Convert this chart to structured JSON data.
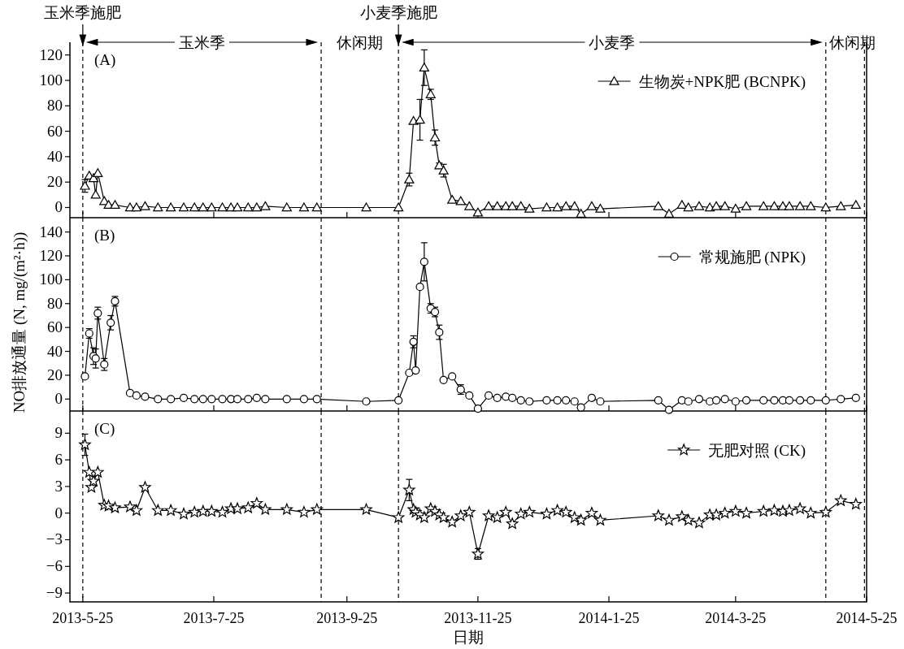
{
  "chart_data": [
    {
      "type": "line",
      "marker": "triangle",
      "legend": "top right",
      "tick_labels": "y",
      "annotations": [
        "(A)",
        "玉米季",
        "休闲期",
        "小麦季",
        "休闲期"
      ],
      "xlim": [
        "2013-05-19",
        "2014-05-25"
      ],
      "ylim": [
        -8,
        130
      ],
      "yticks": [
        0,
        20,
        40,
        60,
        80,
        100,
        120
      ],
      "xticks": [
        {
          "value": "2013-05-25",
          "label": null
        },
        {
          "value": "2013-07-25",
          "label": null
        },
        {
          "value": "2013-09-25",
          "label": null
        },
        {
          "value": "2013-11-25",
          "label": null
        },
        {
          "value": "2014-01-25",
          "label": null
        },
        {
          "value": "2014-03-25",
          "label": null
        },
        {
          "value": "2014-05-25",
          "label": null
        }
      ],
      "ref_lines": [
        {
          "axis": "x",
          "value": "2013-05-25",
          "label": "玉米季施肥",
          "line_style": "dashed"
        },
        {
          "axis": "x",
          "value": "2013-09-13",
          "line_style": "dashed"
        },
        {
          "axis": "x",
          "value": "2013-10-19",
          "label": "小麦季施肥",
          "line_style": "dashed"
        },
        {
          "axis": "x",
          "value": "2014-05-06",
          "line_style": "dashed"
        },
        {
          "axis": "x",
          "value": "2014-05-24",
          "line_style": "dashed"
        }
      ],
      "x": [
        "2013-05-26",
        "2013-05-28",
        "2013-05-30",
        "2013-05-31",
        "2013-06-01",
        "2013-06-04",
        "2013-06-06",
        "2013-06-09",
        "2013-06-16",
        "2013-06-19",
        "2013-06-23",
        "2013-06-29",
        "2013-07-05",
        "2013-07-11",
        "2013-07-16",
        "2013-07-20",
        "2013-07-24",
        "2013-07-29",
        "2013-08-02",
        "2013-08-05",
        "2013-08-10",
        "2013-08-14",
        "2013-08-18",
        "2013-08-28",
        "2013-09-05",
        "2013-09-11",
        "2013-10-04",
        "2013-10-19",
        "2013-10-24",
        "2013-10-26",
        "2013-10-29",
        "2013-10-31",
        "2013-11-03",
        "2013-11-05",
        "2013-11-07",
        "2013-11-09",
        "2013-11-13",
        "2013-11-17",
        "2013-11-21",
        "2013-11-25",
        "2013-11-30",
        "2013-12-04",
        "2013-12-08",
        "2013-12-11",
        "2013-12-15",
        "2013-12-19",
        "2013-12-27",
        "2014-01-01",
        "2014-01-05",
        "2014-01-09",
        "2014-01-12",
        "2014-01-17",
        "2014-01-21",
        "2014-02-17",
        "2014-02-22",
        "2014-02-28",
        "2014-03-03",
        "2014-03-08",
        "2014-03-13",
        "2014-03-16",
        "2014-03-20",
        "2014-03-25",
        "2014-03-30",
        "2014-04-07",
        "2014-04-12",
        "2014-04-16",
        "2014-04-19",
        "2014-04-24",
        "2014-04-29",
        "2014-05-06",
        "2014-05-13",
        "2014-05-20"
      ],
      "series": [
        {
          "name": "生物炭+NPK肥 (BCNPK)",
          "color": "#000000",
          "values": [
            17,
            25,
            23,
            10,
            27,
            5,
            2,
            2,
            0,
            0,
            1,
            0,
            0,
            0,
            0,
            0,
            0,
            0,
            0,
            0,
            0,
            0,
            1,
            0,
            0,
            0,
            0,
            0,
            22,
            68,
            69,
            110,
            89,
            55,
            33,
            29,
            6,
            5,
            1,
            -4,
            1,
            1,
            1,
            1,
            1,
            -1,
            0,
            0,
            1,
            1,
            -5,
            1,
            -1,
            1,
            -5,
            2,
            0,
            1,
            0,
            1,
            1,
            -1,
            1,
            1,
            1,
            1,
            1,
            1,
            1,
            0,
            1,
            2
          ],
          "errors": [
            5,
            null,
            null,
            null,
            null,
            null,
            null,
            null,
            null,
            null,
            null,
            null,
            null,
            null,
            null,
            null,
            null,
            null,
            null,
            null,
            null,
            null,
            null,
            null,
            null,
            null,
            null,
            null,
            5,
            null,
            16,
            14,
            4,
            6,
            2,
            5,
            null,
            null,
            null,
            null,
            null,
            null,
            null,
            null,
            null,
            null,
            null,
            null,
            null,
            null,
            null,
            null,
            null,
            null,
            null,
            null,
            null,
            null,
            null,
            null,
            null,
            null,
            null,
            null,
            null,
            null,
            null,
            null,
            null,
            null,
            null,
            null
          ]
        }
      ]
    },
    {
      "type": "line",
      "marker": "circle",
      "legend": "top right",
      "tick_labels": "y",
      "ylabel": "NO排放通量 (N, mg/(m²·h))",
      "annotations": [
        "(B)"
      ],
      "xlim": [
        "2013-05-19",
        "2014-05-25"
      ],
      "ylim": [
        -10,
        152
      ],
      "yticks": [
        0,
        20,
        40,
        60,
        80,
        100,
        120,
        140
      ],
      "xticks": [
        {
          "value": "2013-05-25",
          "label": null
        },
        {
          "value": "2013-07-25",
          "label": null
        },
        {
          "value": "2013-09-25",
          "label": null
        },
        {
          "value": "2013-11-25",
          "label": null
        },
        {
          "value": "2014-01-25",
          "label": null
        },
        {
          "value": "2014-03-25",
          "label": null
        },
        {
          "value": "2014-05-25",
          "label": null
        }
      ],
      "ref_lines": [
        {
          "axis": "x",
          "value": "2013-05-25",
          "line_style": "dashed"
        },
        {
          "axis": "x",
          "value": "2013-09-13",
          "line_style": "dashed"
        },
        {
          "axis": "x",
          "value": "2013-10-19",
          "line_style": "dashed"
        },
        {
          "axis": "x",
          "value": "2014-05-06",
          "line_style": "dashed"
        },
        {
          "axis": "x",
          "value": "2014-05-24",
          "line_style": "dashed"
        }
      ],
      "x": [
        "2013-05-26",
        "2013-05-28",
        "2013-05-30",
        "2013-05-31",
        "2013-06-01",
        "2013-06-04",
        "2013-06-07",
        "2013-06-09",
        "2013-06-16",
        "2013-06-19",
        "2013-06-23",
        "2013-06-29",
        "2013-07-05",
        "2013-07-11",
        "2013-07-16",
        "2013-07-20",
        "2013-07-24",
        "2013-07-29",
        "2013-08-02",
        "2013-08-05",
        "2013-08-10",
        "2013-08-14",
        "2013-08-18",
        "2013-08-28",
        "2013-09-05",
        "2013-09-11",
        "2013-10-04",
        "2013-10-19",
        "2013-10-24",
        "2013-10-26",
        "2013-10-27",
        "2013-10-29",
        "2013-10-31",
        "2013-11-03",
        "2013-11-05",
        "2013-11-07",
        "2013-11-09",
        "2013-11-13",
        "2013-11-17",
        "2013-11-21",
        "2013-11-25",
        "2013-11-30",
        "2013-12-04",
        "2013-12-08",
        "2013-12-11",
        "2013-12-15",
        "2013-12-19",
        "2013-12-27",
        "2014-01-01",
        "2014-01-05",
        "2014-01-09",
        "2014-01-12",
        "2014-01-17",
        "2014-01-21",
        "2014-02-17",
        "2014-02-22",
        "2014-02-28",
        "2014-03-03",
        "2014-03-08",
        "2014-03-13",
        "2014-03-16",
        "2014-03-20",
        "2014-03-25",
        "2014-03-30",
        "2014-04-07",
        "2014-04-12",
        "2014-04-16",
        "2014-04-19",
        "2014-04-24",
        "2014-04-29",
        "2014-05-06",
        "2014-05-13",
        "2014-05-20"
      ],
      "series": [
        {
          "name": "常规施肥 (NPK)",
          "color": "#000000",
          "values": [
            19,
            55,
            36,
            34,
            72,
            29,
            64,
            82,
            5,
            3,
            2,
            0,
            0,
            1,
            0,
            0,
            0,
            0,
            0,
            0,
            0,
            1,
            0,
            0,
            0,
            0,
            -2,
            -1,
            22,
            48,
            24,
            94,
            115,
            76,
            73,
            56,
            16,
            19,
            8,
            3,
            -8,
            3,
            1,
            2,
            1,
            -1,
            -2,
            -1,
            -1,
            -1,
            -2,
            -7,
            1,
            -2,
            -1,
            -9,
            -1,
            -2,
            0,
            -2,
            -1,
            0,
            -2,
            -1,
            -1,
            -1,
            -1,
            -1,
            -1,
            -1,
            -1,
            0,
            1
          ],
          "errors": [
            null,
            4,
            7,
            8,
            5,
            5,
            6,
            4,
            null,
            null,
            null,
            null,
            null,
            null,
            null,
            null,
            null,
            null,
            null,
            null,
            null,
            null,
            null,
            null,
            null,
            null,
            null,
            null,
            null,
            5,
            null,
            null,
            16,
            4,
            4,
            6,
            null,
            null,
            4,
            null,
            null,
            null,
            null,
            null,
            null,
            null,
            null,
            null,
            null,
            null,
            null,
            null,
            null,
            null,
            null,
            null,
            null,
            null,
            null,
            null,
            null,
            null,
            null,
            null,
            null,
            null,
            null,
            null,
            null,
            null,
            null,
            null,
            null
          ]
        }
      ]
    },
    {
      "type": "line",
      "marker": "star",
      "legend": "top right",
      "xlabel": "日期",
      "annotations": [
        "(C)"
      ],
      "xlim": [
        "2013-05-19",
        "2014-05-25"
      ],
      "ylim": [
        -10,
        11.5
      ],
      "yticks": [
        -9,
        -6,
        -3,
        0,
        3,
        6,
        9
      ],
      "xticks": [
        {
          "value": "2013-05-25",
          "label": "2013-5-25"
        },
        {
          "value": "2013-07-25",
          "label": "2013-7-25"
        },
        {
          "value": "2013-09-25",
          "label": "2013-9-25"
        },
        {
          "value": "2013-11-25",
          "label": "2013-11-25"
        },
        {
          "value": "2014-01-25",
          "label": "2014-1-25"
        },
        {
          "value": "2014-03-25",
          "label": "2014-3-25"
        },
        {
          "value": "2014-05-25",
          "label": "2014-5-25"
        }
      ],
      "ref_lines": [
        {
          "axis": "x",
          "value": "2013-05-25",
          "line_style": "dashed"
        },
        {
          "axis": "x",
          "value": "2013-09-13",
          "line_style": "dashed"
        },
        {
          "axis": "x",
          "value": "2013-10-19",
          "line_style": "dashed"
        },
        {
          "axis": "x",
          "value": "2014-05-06",
          "line_style": "dashed"
        },
        {
          "axis": "x",
          "value": "2014-05-24",
          "line_style": "dashed"
        }
      ],
      "x": [
        "2013-05-26",
        "2013-05-28",
        "2013-05-29",
        "2013-05-30",
        "2013-06-01",
        "2013-06-04",
        "2013-06-06",
        "2013-06-09",
        "2013-06-16",
        "2013-06-19",
        "2013-06-23",
        "2013-06-29",
        "2013-07-05",
        "2013-07-11",
        "2013-07-16",
        "2013-07-20",
        "2013-07-24",
        "2013-07-29",
        "2013-08-02",
        "2013-08-05",
        "2013-08-10",
        "2013-08-14",
        "2013-08-18",
        "2013-08-28",
        "2013-09-05",
        "2013-09-11",
        "2013-10-04",
        "2013-10-19",
        "2013-10-24",
        "2013-10-26",
        "2013-10-27",
        "2013-10-29",
        "2013-10-31",
        "2013-11-03",
        "2013-11-05",
        "2013-11-07",
        "2013-11-09",
        "2013-11-13",
        "2013-11-17",
        "2013-11-21",
        "2013-11-25",
        "2013-11-30",
        "2013-12-04",
        "2013-12-08",
        "2013-12-11",
        "2013-12-15",
        "2013-12-19",
        "2013-12-27",
        "2014-01-01",
        "2014-01-05",
        "2014-01-09",
        "2014-01-12",
        "2014-01-17",
        "2014-01-21",
        "2014-02-17",
        "2014-02-22",
        "2014-02-28",
        "2014-03-03",
        "2014-03-08",
        "2014-03-13",
        "2014-03-16",
        "2014-03-20",
        "2014-03-25",
        "2014-03-30",
        "2014-04-07",
        "2014-04-12",
        "2014-04-16",
        "2014-04-19",
        "2014-04-24",
        "2014-04-29",
        "2014-05-06",
        "2014-05-13",
        "2014-05-20"
      ],
      "series": [
        {
          "name": "无肥对照 (CK)",
          "color": "#000000",
          "values": [
            7.7,
            4.6,
            2.9,
            3.6,
            4.6,
            0.9,
            0.8,
            0.6,
            0.7,
            0.3,
            2.9,
            0.3,
            0.3,
            -0.1,
            0.1,
            0.2,
            0.2,
            0.1,
            0.5,
            0.5,
            0.6,
            1.1,
            0.4,
            0.4,
            0.1,
            0.4,
            0.4,
            -0.5,
            2.6,
            0.4,
            0.1,
            -0.2,
            -0.5,
            0.5,
            0.2,
            -0.2,
            -0.5,
            -1.0,
            -0.3,
            0.1,
            -4.6,
            -0.3,
            -0.5,
            0.1,
            -1.2,
            -0.1,
            0.1,
            -0.1,
            0.3,
            0.1,
            -0.5,
            -0.8,
            0,
            -0.8,
            -0.3,
            -0.8,
            -0.4,
            -0.8,
            -1.1,
            -0.2,
            -0.2,
            0,
            0.2,
            0,
            0.2,
            0.3,
            0.2,
            0.3,
            0.5,
            0,
            0.1,
            1.4,
            1.0
          ],
          "errors": [
            1.2,
            null,
            null,
            null,
            null,
            null,
            null,
            null,
            null,
            null,
            null,
            null,
            null,
            null,
            null,
            null,
            null,
            null,
            null,
            null,
            null,
            null,
            null,
            null,
            null,
            null,
            null,
            null,
            1.2,
            null,
            null,
            null,
            null,
            null,
            null,
            null,
            null,
            null,
            null,
            null,
            0.6,
            null,
            null,
            null,
            null,
            null,
            null,
            null,
            null,
            null,
            null,
            null,
            null,
            null,
            null,
            null,
            null,
            null,
            null,
            null,
            null,
            null,
            null,
            null,
            null,
            null,
            null,
            null,
            null,
            null,
            null,
            null,
            null
          ]
        }
      ]
    }
  ]
}
